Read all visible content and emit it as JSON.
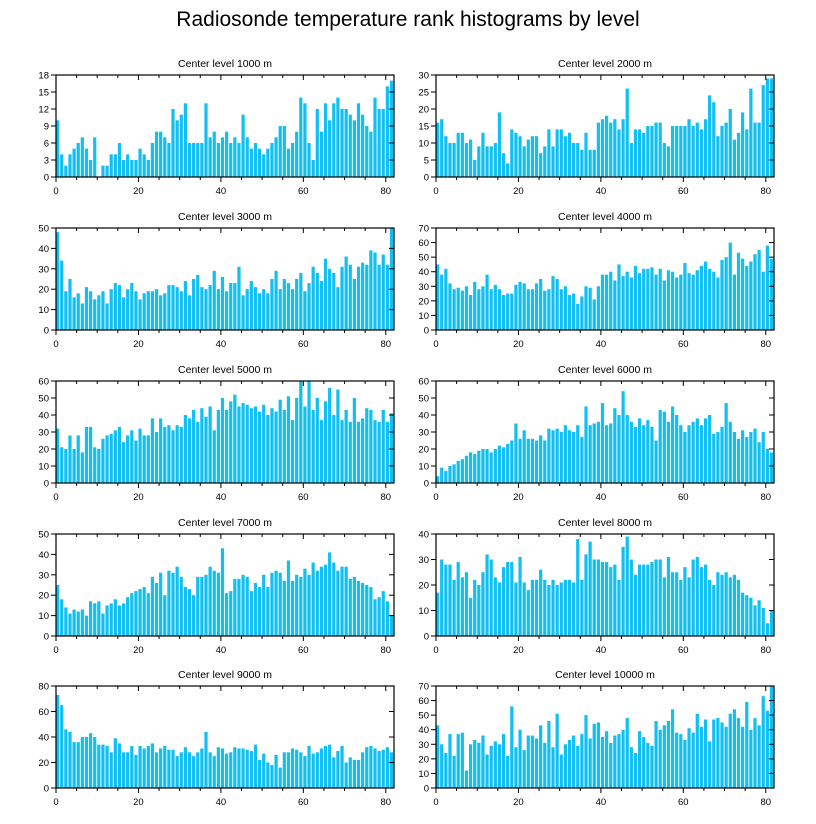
{
  "title": "Radiosonde temperature rank histograms by level",
  "chart_data": [
    {
      "type": "bar",
      "title": "Center level 1000 m",
      "xlim": [
        0,
        82
      ],
      "ylim": [
        0,
        18
      ],
      "yticks": [
        0,
        3,
        6,
        9,
        12,
        15,
        18
      ],
      "xticks": [
        0,
        20,
        40,
        60,
        80
      ],
      "values": [
        10,
        4,
        2,
        4,
        5,
        6,
        7,
        5,
        3,
        7,
        0,
        2,
        2,
        4,
        4,
        6,
        3,
        4,
        3,
        3,
        5,
        4,
        3,
        6,
        8,
        8,
        7,
        6,
        12,
        10,
        11,
        13,
        6,
        6,
        6,
        6,
        13,
        7,
        8,
        6,
        7,
        8,
        6,
        7,
        6,
        11,
        7,
        5,
        6,
        5,
        4,
        5,
        6,
        7,
        9,
        9,
        5,
        6,
        8,
        14,
        13,
        6,
        3,
        12,
        8,
        13,
        10,
        13,
        14,
        12,
        12,
        11,
        10,
        13,
        11,
        9,
        8,
        14,
        12,
        12,
        16,
        17
      ]
    },
    {
      "type": "bar",
      "title": "Center level 2000 m",
      "xlim": [
        0,
        82
      ],
      "ylim": [
        0,
        30
      ],
      "yticks": [
        0,
        5,
        10,
        15,
        20,
        25,
        30
      ],
      "xticks": [
        0,
        20,
        40,
        60,
        80
      ],
      "values": [
        16,
        17,
        12,
        10,
        10,
        13,
        13,
        10,
        11,
        5,
        9,
        13,
        9,
        9,
        10,
        19,
        7,
        4,
        14,
        13,
        12,
        9,
        11,
        12,
        12,
        7,
        9,
        14,
        9,
        14,
        14,
        12,
        13,
        10,
        10,
        8,
        13,
        8,
        8,
        16,
        17,
        18,
        16,
        17,
        14,
        17,
        26,
        10,
        14,
        14,
        13,
        15,
        15,
        16,
        16,
        10,
        9,
        15,
        15,
        15,
        15,
        17,
        15,
        16,
        14,
        17,
        24,
        22,
        12,
        15,
        16,
        20,
        11,
        13,
        19,
        14,
        26,
        16,
        16,
        27,
        29,
        29
      ]
    },
    {
      "type": "bar",
      "title": "Center level 3000 m",
      "xlim": [
        0,
        82
      ],
      "ylim": [
        0,
        50
      ],
      "yticks": [
        0,
        10,
        20,
        30,
        40,
        50
      ],
      "xticks": [
        0,
        20,
        40,
        60,
        80
      ],
      "values": [
        48,
        34,
        19,
        25,
        16,
        18,
        13,
        21,
        19,
        15,
        17,
        19,
        13,
        20,
        23,
        22,
        16,
        20,
        23,
        19,
        15,
        18,
        19,
        19,
        20,
        17,
        18,
        22,
        22,
        21,
        19,
        24,
        17,
        25,
        27,
        21,
        20,
        22,
        29,
        20,
        26,
        19,
        23,
        23,
        31,
        17,
        20,
        24,
        21,
        18,
        20,
        18,
        25,
        29,
        20,
        25,
        23,
        20,
        25,
        28,
        19,
        23,
        31,
        28,
        24,
        35,
        30,
        28,
        21,
        31,
        36,
        32,
        25,
        31,
        33,
        32,
        39,
        38,
        32,
        37,
        32,
        50
      ]
    },
    {
      "type": "bar",
      "title": "Center level 4000 m",
      "xlim": [
        0,
        82
      ],
      "ylim": [
        0,
        70
      ],
      "yticks": [
        0,
        10,
        20,
        30,
        40,
        50,
        60,
        70
      ],
      "xticks": [
        0,
        20,
        40,
        60,
        80
      ],
      "values": [
        45,
        38,
        42,
        32,
        28,
        29,
        27,
        30,
        24,
        33,
        28,
        30,
        38,
        28,
        31,
        28,
        24,
        25,
        25,
        31,
        33,
        32,
        28,
        28,
        32,
        35,
        27,
        28,
        37,
        35,
        28,
        30,
        24,
        25,
        18,
        23,
        30,
        29,
        21,
        30,
        38,
        38,
        40,
        34,
        45,
        37,
        40,
        36,
        44,
        39,
        42,
        42,
        43,
        38,
        42,
        34,
        41,
        40,
        36,
        38,
        46,
        39,
        38,
        41,
        44,
        47,
        42,
        40,
        36,
        48,
        50,
        60,
        38,
        53,
        49,
        44,
        47,
        52,
        55,
        40,
        58,
        49
      ]
    },
    {
      "type": "bar",
      "title": "Center level 5000 m",
      "xlim": [
        0,
        82
      ],
      "ylim": [
        0,
        60
      ],
      "yticks": [
        0,
        10,
        20,
        30,
        40,
        50,
        60
      ],
      "xticks": [
        0,
        20,
        40,
        60,
        80
      ],
      "values": [
        32,
        21,
        20,
        28,
        20,
        28,
        18,
        33,
        33,
        21,
        20,
        26,
        28,
        29,
        31,
        33,
        24,
        28,
        31,
        25,
        32,
        28,
        28,
        38,
        30,
        38,
        33,
        34,
        31,
        34,
        33,
        40,
        38,
        43,
        36,
        44,
        39,
        45,
        31,
        43,
        50,
        43,
        48,
        52,
        45,
        47,
        46,
        44,
        45,
        42,
        46,
        40,
        44,
        42,
        49,
        43,
        51,
        37,
        50,
        60,
        45,
        60,
        43,
        50,
        37,
        48,
        56,
        40,
        55,
        37,
        43,
        36,
        50,
        36,
        38,
        44,
        43,
        37,
        36,
        43,
        36,
        41
      ]
    },
    {
      "type": "bar",
      "title": "Center level 6000 m",
      "xlim": [
        0,
        82
      ],
      "ylim": [
        0,
        60
      ],
      "yticks": [
        0,
        10,
        20,
        30,
        40,
        50,
        60
      ],
      "xticks": [
        0,
        20,
        40,
        60,
        80
      ],
      "values": [
        4,
        9,
        7,
        10,
        11,
        13,
        14,
        16,
        18,
        17,
        19,
        20,
        20,
        18,
        20,
        22,
        21,
        23,
        25,
        35,
        26,
        31,
        26,
        26,
        25,
        28,
        25,
        32,
        31,
        32,
        30,
        34,
        31,
        30,
        34,
        27,
        45,
        34,
        35,
        36,
        47,
        34,
        35,
        44,
        40,
        54,
        40,
        36,
        33,
        38,
        34,
        37,
        33,
        25,
        43,
        42,
        36,
        45,
        40,
        34,
        30,
        34,
        36,
        38,
        34,
        38,
        40,
        29,
        30,
        33,
        47,
        36,
        30,
        26,
        31,
        27,
        30,
        32,
        24,
        30,
        20,
        18
      ]
    },
    {
      "type": "bar",
      "title": "Center level 7000 m",
      "xlim": [
        0,
        82
      ],
      "ylim": [
        0,
        50
      ],
      "yticks": [
        0,
        10,
        20,
        30,
        40,
        50
      ],
      "xticks": [
        0,
        20,
        40,
        60,
        80
      ],
      "values": [
        25,
        18,
        14,
        11,
        13,
        12,
        13,
        10,
        17,
        16,
        17,
        11,
        15,
        16,
        18,
        15,
        16,
        19,
        21,
        22,
        23,
        24,
        21,
        29,
        26,
        31,
        20,
        32,
        31,
        34,
        29,
        24,
        23,
        20,
        29,
        29,
        30,
        34,
        32,
        31,
        43,
        21,
        22,
        28,
        28,
        30,
        29,
        22,
        26,
        24,
        30,
        24,
        31,
        32,
        31,
        27,
        37,
        27,
        30,
        29,
        33,
        30,
        36,
        32,
        34,
        35,
        41,
        36,
        32,
        34,
        34,
        28,
        29,
        27,
        26,
        25,
        24,
        18,
        19,
        22,
        17,
        10
      ]
    },
    {
      "type": "bar",
      "title": "Center level 8000 m",
      "xlim": [
        0,
        82
      ],
      "ylim": [
        0,
        40
      ],
      "yticks": [
        0,
        10,
        20,
        30,
        40
      ],
      "xticks": [
        0,
        20,
        40,
        60,
        80
      ],
      "values": [
        17,
        30,
        28,
        28,
        22,
        29,
        23,
        25,
        15,
        22,
        20,
        25,
        32,
        30,
        23,
        21,
        27,
        29,
        29,
        21,
        31,
        21,
        18,
        22,
        22,
        26,
        22,
        20,
        22,
        20,
        21,
        22,
        22,
        21,
        38,
        22,
        32,
        37,
        30,
        30,
        29,
        29,
        27,
        28,
        22,
        35,
        39,
        30,
        24,
        28,
        28,
        28,
        29,
        30,
        30,
        23,
        31,
        25,
        25,
        22,
        27,
        23,
        30,
        31,
        27,
        28,
        22,
        20,
        25,
        24,
        25,
        23,
        24,
        22,
        17,
        16,
        15,
        12,
        14,
        11,
        5,
        10
      ]
    },
    {
      "type": "bar",
      "title": "Center level 9000 m",
      "xlim": [
        0,
        82
      ],
      "ylim": [
        0,
        80
      ],
      "yticks": [
        0,
        20,
        40,
        60,
        80
      ],
      "xticks": [
        0,
        20,
        40,
        60,
        80
      ],
      "values": [
        73,
        65,
        46,
        44,
        36,
        36,
        40,
        40,
        43,
        40,
        34,
        34,
        33,
        28,
        39,
        35,
        28,
        28,
        33,
        26,
        33,
        31,
        33,
        35,
        28,
        31,
        33,
        30,
        30,
        25,
        28,
        32,
        28,
        25,
        28,
        31,
        44,
        28,
        25,
        32,
        31,
        27,
        28,
        32,
        31,
        31,
        30,
        29,
        34,
        22,
        27,
        20,
        18,
        26,
        16,
        28,
        28,
        31,
        30,
        28,
        25,
        33,
        27,
        28,
        31,
        33,
        34,
        24,
        29,
        33,
        20,
        24,
        22,
        22,
        28,
        32,
        33,
        31,
        29,
        30,
        32,
        28
      ]
    },
    {
      "type": "bar",
      "title": "Center level 10000 m",
      "xlim": [
        0,
        82
      ],
      "ylim": [
        0,
        70
      ],
      "yticks": [
        0,
        10,
        20,
        30,
        40,
        50,
        60,
        70
      ],
      "xticks": [
        0,
        20,
        40,
        60,
        80
      ],
      "values": [
        43,
        30,
        24,
        37,
        22,
        37,
        38,
        12,
        30,
        33,
        31,
        36,
        23,
        29,
        32,
        30,
        37,
        22,
        56,
        28,
        40,
        26,
        36,
        36,
        34,
        43,
        31,
        46,
        28,
        51,
        23,
        30,
        33,
        36,
        29,
        37,
        50,
        34,
        44,
        45,
        35,
        39,
        31,
        36,
        37,
        40,
        48,
        28,
        24,
        39,
        35,
        31,
        29,
        46,
        40,
        43,
        46,
        54,
        38,
        37,
        33,
        41,
        38,
        51,
        42,
        47,
        32,
        47,
        48,
        45,
        42,
        51,
        54,
        48,
        42,
        59,
        40,
        48,
        43,
        63,
        53,
        70
      ]
    }
  ]
}
